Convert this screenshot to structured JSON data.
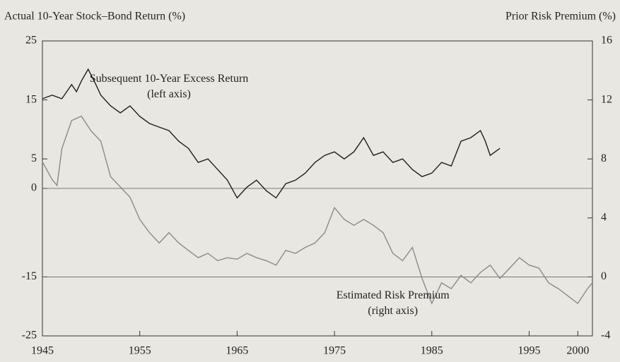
{
  "chart_data": {
    "type": "line",
    "y_axis_label": "Actual 10-Year Stock–Bond Return (%)",
    "y2_axis_label": "Prior Risk Premium (%)",
    "xlim": [
      1945,
      2001.5
    ],
    "xticks": [
      1945,
      1955,
      1965,
      1975,
      1985,
      1995,
      2000
    ],
    "ylim": [
      -25,
      25
    ],
    "yticks": [
      25,
      15,
      5,
      0,
      -15,
      -25
    ],
    "y2lim": [
      -4,
      16
    ],
    "y2ticks": [
      16,
      12,
      8,
      4,
      0,
      -4
    ],
    "zero_lines": true,
    "annotations": [
      {
        "lines": [
          "Subsequent 10-Year Excess Return",
          "(left axis)"
        ],
        "x": 1958,
        "y": 18.5,
        "axis": "y"
      },
      {
        "lines": [
          "Estimated Risk Premium",
          "(right axis)"
        ],
        "x": 1981,
        "y": -1.3,
        "axis": "y2"
      }
    ],
    "series": [
      {
        "name": "Subsequent 10-Year Excess Return",
        "color": "#1e1e1e",
        "axis": "y",
        "x": [
          1945,
          1946,
          1947,
          1948,
          1948.5,
          1949,
          1949.7,
          1950.5,
          1951,
          1952,
          1953,
          1954,
          1955,
          1956,
          1957,
          1958,
          1959,
          1960,
          1961,
          1962,
          1963,
          1964,
          1965,
          1966,
          1967,
          1968,
          1969,
          1970,
          1971,
          1972,
          1973,
          1974,
          1975,
          1976,
          1977,
          1978,
          1979,
          1980,
          1981,
          1982,
          1983,
          1984,
          1985,
          1986,
          1987,
          1988,
          1989,
          1990,
          1990.5,
          1991,
          1992
        ],
        "values": [
          15.2,
          15.8,
          15.2,
          17.6,
          16.4,
          18.2,
          20.2,
          17.6,
          15.8,
          14.0,
          12.8,
          14.0,
          12.2,
          11.0,
          10.4,
          9.8,
          8.0,
          6.8,
          4.4,
          5.0,
          3.2,
          1.4,
          -1.6,
          0.2,
          1.4,
          -0.4,
          -1.6,
          0.8,
          1.4,
          2.6,
          4.4,
          5.6,
          6.2,
          5.0,
          6.2,
          8.6,
          5.6,
          6.2,
          4.4,
          5.0,
          3.2,
          2.0,
          2.6,
          4.4,
          3.8,
          8.0,
          8.6,
          9.8,
          8.0,
          5.6,
          6.8
        ]
      },
      {
        "name": "Estimated Risk Premium",
        "color": "#8a8a8a",
        "axis": "y2",
        "x": [
          1945,
          1946,
          1946.5,
          1947,
          1948,
          1949,
          1950,
          1951,
          1952,
          1953,
          1954,
          1955,
          1956,
          1957,
          1958,
          1959,
          1960,
          1961,
          1962,
          1963,
          1964,
          1965,
          1966,
          1967,
          1968,
          1969,
          1970,
          1971,
          1972,
          1973,
          1974,
          1975,
          1976,
          1977,
          1978,
          1979,
          1980,
          1981,
          1982,
          1983,
          1984,
          1985,
          1986,
          1987,
          1988,
          1989,
          1990,
          1991,
          1992,
          1993,
          1994,
          1995,
          1996,
          1997,
          1998,
          1999,
          2000,
          2001,
          2001.5
        ],
        "values": [
          7.8,
          6.6,
          6.2,
          8.7,
          10.6,
          10.9,
          9.9,
          9.2,
          6.8,
          6.1,
          5.4,
          3.9,
          3.0,
          2.3,
          3.0,
          2.3,
          1.8,
          1.3,
          1.6,
          1.1,
          1.3,
          1.2,
          1.6,
          1.3,
          1.1,
          0.8,
          1.8,
          1.6,
          2.0,
          2.3,
          3.0,
          4.7,
          3.9,
          3.5,
          3.9,
          3.5,
          3.0,
          1.6,
          1.1,
          2.0,
          -0.1,
          -1.8,
          -0.4,
          -0.8,
          0.1,
          -0.4,
          0.3,
          0.8,
          -0.1,
          0.6,
          1.3,
          0.8,
          0.6,
          -0.4,
          -0.8,
          -1.3,
          -1.8,
          -0.8,
          -0.4
        ]
      }
    ]
  }
}
